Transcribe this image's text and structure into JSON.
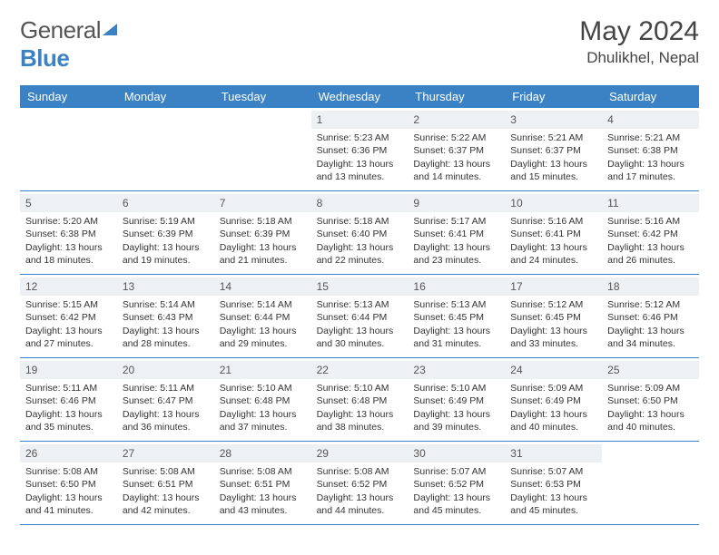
{
  "brand": {
    "part1": "General",
    "part2": "Blue"
  },
  "title": "May 2024",
  "location": "Dhulikhel, Nepal",
  "colors": {
    "primary": "#3b82c4",
    "header_bg": "#3b82c4",
    "daynum_bg": "#eef1f3",
    "border": "#3b82c4",
    "text": "#333333",
    "title_text": "#444444"
  },
  "dayNames": [
    "Sunday",
    "Monday",
    "Tuesday",
    "Wednesday",
    "Thursday",
    "Friday",
    "Saturday"
  ],
  "startOffset": 3,
  "days": [
    {
      "n": 1,
      "sr": "5:23 AM",
      "ss": "6:36 PM",
      "dl": "13 hours and 13 minutes."
    },
    {
      "n": 2,
      "sr": "5:22 AM",
      "ss": "6:37 PM",
      "dl": "13 hours and 14 minutes."
    },
    {
      "n": 3,
      "sr": "5:21 AM",
      "ss": "6:37 PM",
      "dl": "13 hours and 15 minutes."
    },
    {
      "n": 4,
      "sr": "5:21 AM",
      "ss": "6:38 PM",
      "dl": "13 hours and 17 minutes."
    },
    {
      "n": 5,
      "sr": "5:20 AM",
      "ss": "6:38 PM",
      "dl": "13 hours and 18 minutes."
    },
    {
      "n": 6,
      "sr": "5:19 AM",
      "ss": "6:39 PM",
      "dl": "13 hours and 19 minutes."
    },
    {
      "n": 7,
      "sr": "5:18 AM",
      "ss": "6:39 PM",
      "dl": "13 hours and 21 minutes."
    },
    {
      "n": 8,
      "sr": "5:18 AM",
      "ss": "6:40 PM",
      "dl": "13 hours and 22 minutes."
    },
    {
      "n": 9,
      "sr": "5:17 AM",
      "ss": "6:41 PM",
      "dl": "13 hours and 23 minutes."
    },
    {
      "n": 10,
      "sr": "5:16 AM",
      "ss": "6:41 PM",
      "dl": "13 hours and 24 minutes."
    },
    {
      "n": 11,
      "sr": "5:16 AM",
      "ss": "6:42 PM",
      "dl": "13 hours and 26 minutes."
    },
    {
      "n": 12,
      "sr": "5:15 AM",
      "ss": "6:42 PM",
      "dl": "13 hours and 27 minutes."
    },
    {
      "n": 13,
      "sr": "5:14 AM",
      "ss": "6:43 PM",
      "dl": "13 hours and 28 minutes."
    },
    {
      "n": 14,
      "sr": "5:14 AM",
      "ss": "6:44 PM",
      "dl": "13 hours and 29 minutes."
    },
    {
      "n": 15,
      "sr": "5:13 AM",
      "ss": "6:44 PM",
      "dl": "13 hours and 30 minutes."
    },
    {
      "n": 16,
      "sr": "5:13 AM",
      "ss": "6:45 PM",
      "dl": "13 hours and 31 minutes."
    },
    {
      "n": 17,
      "sr": "5:12 AM",
      "ss": "6:45 PM",
      "dl": "13 hours and 33 minutes."
    },
    {
      "n": 18,
      "sr": "5:12 AM",
      "ss": "6:46 PM",
      "dl": "13 hours and 34 minutes."
    },
    {
      "n": 19,
      "sr": "5:11 AM",
      "ss": "6:46 PM",
      "dl": "13 hours and 35 minutes."
    },
    {
      "n": 20,
      "sr": "5:11 AM",
      "ss": "6:47 PM",
      "dl": "13 hours and 36 minutes."
    },
    {
      "n": 21,
      "sr": "5:10 AM",
      "ss": "6:48 PM",
      "dl": "13 hours and 37 minutes."
    },
    {
      "n": 22,
      "sr": "5:10 AM",
      "ss": "6:48 PM",
      "dl": "13 hours and 38 minutes."
    },
    {
      "n": 23,
      "sr": "5:10 AM",
      "ss": "6:49 PM",
      "dl": "13 hours and 39 minutes."
    },
    {
      "n": 24,
      "sr": "5:09 AM",
      "ss": "6:49 PM",
      "dl": "13 hours and 40 minutes."
    },
    {
      "n": 25,
      "sr": "5:09 AM",
      "ss": "6:50 PM",
      "dl": "13 hours and 40 minutes."
    },
    {
      "n": 26,
      "sr": "5:08 AM",
      "ss": "6:50 PM",
      "dl": "13 hours and 41 minutes."
    },
    {
      "n": 27,
      "sr": "5:08 AM",
      "ss": "6:51 PM",
      "dl": "13 hours and 42 minutes."
    },
    {
      "n": 28,
      "sr": "5:08 AM",
      "ss": "6:51 PM",
      "dl": "13 hours and 43 minutes."
    },
    {
      "n": 29,
      "sr": "5:08 AM",
      "ss": "6:52 PM",
      "dl": "13 hours and 44 minutes."
    },
    {
      "n": 30,
      "sr": "5:07 AM",
      "ss": "6:52 PM",
      "dl": "13 hours and 45 minutes."
    },
    {
      "n": 31,
      "sr": "5:07 AM",
      "ss": "6:53 PM",
      "dl": "13 hours and 45 minutes."
    }
  ],
  "labels": {
    "sunrise": "Sunrise: ",
    "sunset": "Sunset: ",
    "daylight": "Daylight: "
  }
}
